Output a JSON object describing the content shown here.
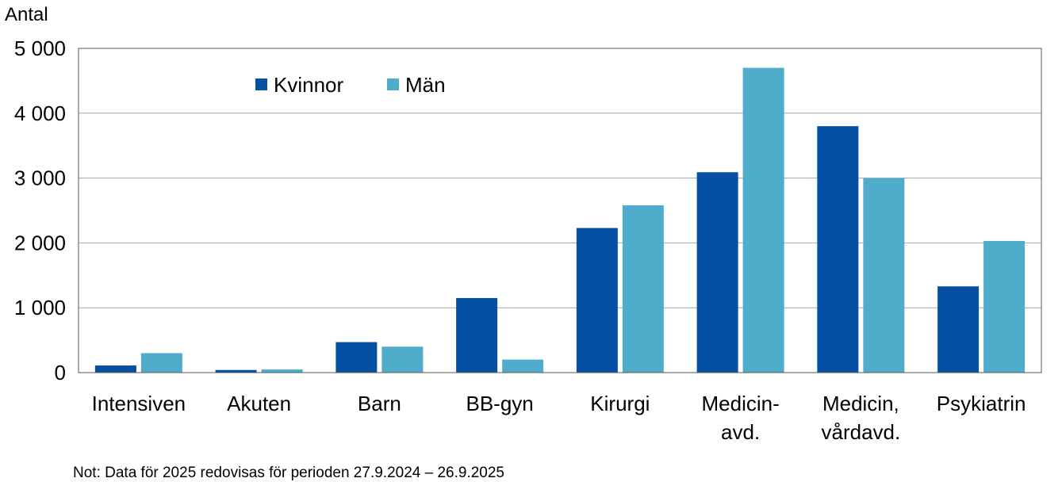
{
  "chart_data": {
    "type": "bar",
    "ylabel": "Antal",
    "ylim": [
      0,
      5000
    ],
    "yticks": [
      0,
      1000,
      2000,
      3000,
      4000,
      5000
    ],
    "ytick_labels": [
      "0",
      "1 000",
      "2 000",
      "3 000",
      "4 000",
      "5 000"
    ],
    "grid": true,
    "legend_position": "top-left",
    "categories": [
      [
        "Intensiven"
      ],
      [
        "Akuten"
      ],
      [
        "Barn"
      ],
      [
        "BB-gyn"
      ],
      [
        "Kirurgi"
      ],
      [
        "Medicin-",
        "avd."
      ],
      [
        "Medicin,",
        "vårdavd."
      ],
      [
        "Psykiatrin"
      ]
    ],
    "series": [
      {
        "name": "Kvinnor",
        "color": "#0550A3",
        "values": [
          110,
          40,
          470,
          1150,
          2230,
          3090,
          3800,
          1330
        ]
      },
      {
        "name": "Män",
        "color": "#4FACCB",
        "values": [
          300,
          50,
          400,
          200,
          2580,
          4700,
          3000,
          2030
        ]
      }
    ]
  },
  "note": "Not: Data för 2025 redovisas för perioden 27.9.2024 – 26.9.2025"
}
